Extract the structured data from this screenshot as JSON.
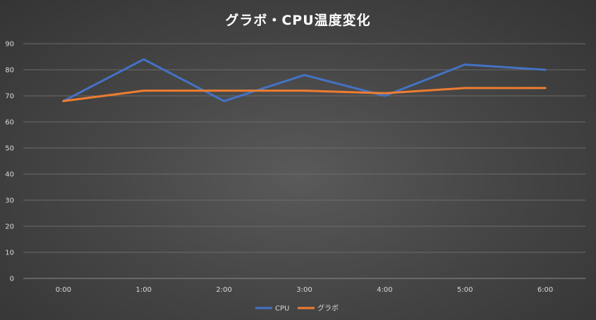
{
  "chart_data": {
    "type": "line",
    "title": "グラボ・CPU温度変化",
    "x": [
      "0:00",
      "1:00",
      "2:00",
      "3:00",
      "4:00",
      "5:00",
      "6:00"
    ],
    "ylim": [
      0,
      90
    ],
    "yticks": [
      0,
      10,
      20,
      30,
      40,
      50,
      60,
      70,
      80,
      90
    ],
    "grid": true,
    "legend_position": "bottom",
    "series": [
      {
        "name": "CPU",
        "color": "#4472c4",
        "values": [
          68,
          84,
          68,
          78,
          70,
          82,
          80
        ]
      },
      {
        "name": "グラボ",
        "color": "#ed7d31",
        "values": [
          68,
          72,
          72,
          72,
          71,
          73,
          73
        ]
      }
    ]
  }
}
